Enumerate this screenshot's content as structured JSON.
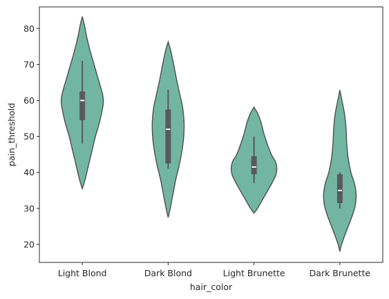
{
  "chart_data": {
    "type": "violin",
    "xlabel": "hair_color",
    "ylabel": "pain_threshold",
    "categories": [
      "Light Blond",
      "Dark Blond",
      "Light Brunette",
      "Dark Brunette"
    ],
    "ylim": [
      15,
      86
    ],
    "yticks": [
      20,
      30,
      40,
      50,
      60,
      70,
      80
    ],
    "grid": false,
    "colors": {
      "fill": "#72b6a1",
      "edge": "#4d4d4d",
      "box": "#595959",
      "median": "#ffffff"
    },
    "violins": [
      {
        "category": "Light Blond",
        "whisker": [
          48,
          71
        ],
        "q1": 54.5,
        "median": 60,
        "q3": 62.5,
        "profile": [
          [
            35.5,
            0.0
          ],
          [
            38,
            4
          ],
          [
            42,
            9
          ],
          [
            46,
            14
          ],
          [
            50,
            19
          ],
          [
            54,
            25
          ],
          [
            58,
            29.5
          ],
          [
            60,
            30.5
          ],
          [
            62,
            29
          ],
          [
            66,
            23
          ],
          [
            70,
            17
          ],
          [
            74,
            11
          ],
          [
            78,
            6
          ],
          [
            81,
            3
          ],
          [
            83.3,
            0.0
          ]
        ]
      },
      {
        "category": "Dark Blond",
        "whisker": [
          41,
          63
        ],
        "q1": 42.5,
        "median": 52,
        "q3": 57.5,
        "profile": [
          [
            27.5,
            0.0
          ],
          [
            30,
            3
          ],
          [
            34,
            7
          ],
          [
            38,
            11
          ],
          [
            42,
            16
          ],
          [
            46,
            20
          ],
          [
            50,
            22.5
          ],
          [
            54,
            23
          ],
          [
            58,
            21
          ],
          [
            62,
            16.5
          ],
          [
            66,
            12
          ],
          [
            70,
            8
          ],
          [
            74,
            3.5
          ],
          [
            76.3,
            0.0
          ]
        ]
      },
      {
        "category": "Light Brunette",
        "whisker": [
          37,
          50
        ],
        "q1": 39.5,
        "median": 41.5,
        "q3": 44.5,
        "profile": [
          [
            28.7,
            0.0
          ],
          [
            30,
            5
          ],
          [
            33,
            14
          ],
          [
            36,
            23
          ],
          [
            39,
            31
          ],
          [
            41,
            33
          ],
          [
            43,
            31
          ],
          [
            45,
            25
          ],
          [
            48,
            19
          ],
          [
            51,
            14
          ],
          [
            54,
            10
          ],
          [
            56.5,
            5
          ],
          [
            58.1,
            0.0
          ]
        ]
      },
      {
        "category": "Dark Brunette",
        "whisker": [
          30,
          40
        ],
        "q1": 31.5,
        "median": 35,
        "q3": 39.5,
        "profile": [
          [
            18,
            0.0
          ],
          [
            20,
            2.5
          ],
          [
            24,
            10
          ],
          [
            28,
            18
          ],
          [
            31,
            22.5
          ],
          [
            34,
            23.5
          ],
          [
            37,
            21
          ],
          [
            40,
            16
          ],
          [
            44,
            12
          ],
          [
            48,
            10
          ],
          [
            52,
            9
          ],
          [
            56,
            7
          ],
          [
            60,
            3
          ],
          [
            62.9,
            0.0
          ]
        ]
      }
    ]
  }
}
